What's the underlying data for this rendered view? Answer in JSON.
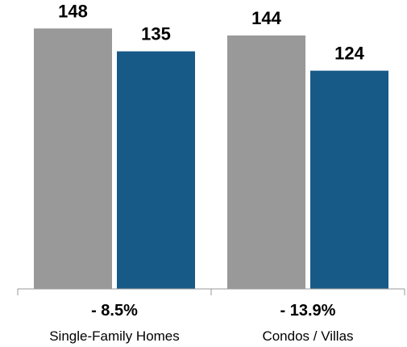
{
  "chart_data": {
    "type": "bar",
    "categories": [
      "Single-Family Homes",
      "Condos / Villas"
    ],
    "series": [
      {
        "values": [
          148,
          144
        ],
        "color": "#999999"
      },
      {
        "values": [
          135,
          124
        ],
        "color": "#175a88"
      }
    ],
    "changes": [
      "- 8.5%",
      "- 13.9%"
    ],
    "ylim": [
      0,
      155
    ],
    "grid": false,
    "legend": "none"
  }
}
